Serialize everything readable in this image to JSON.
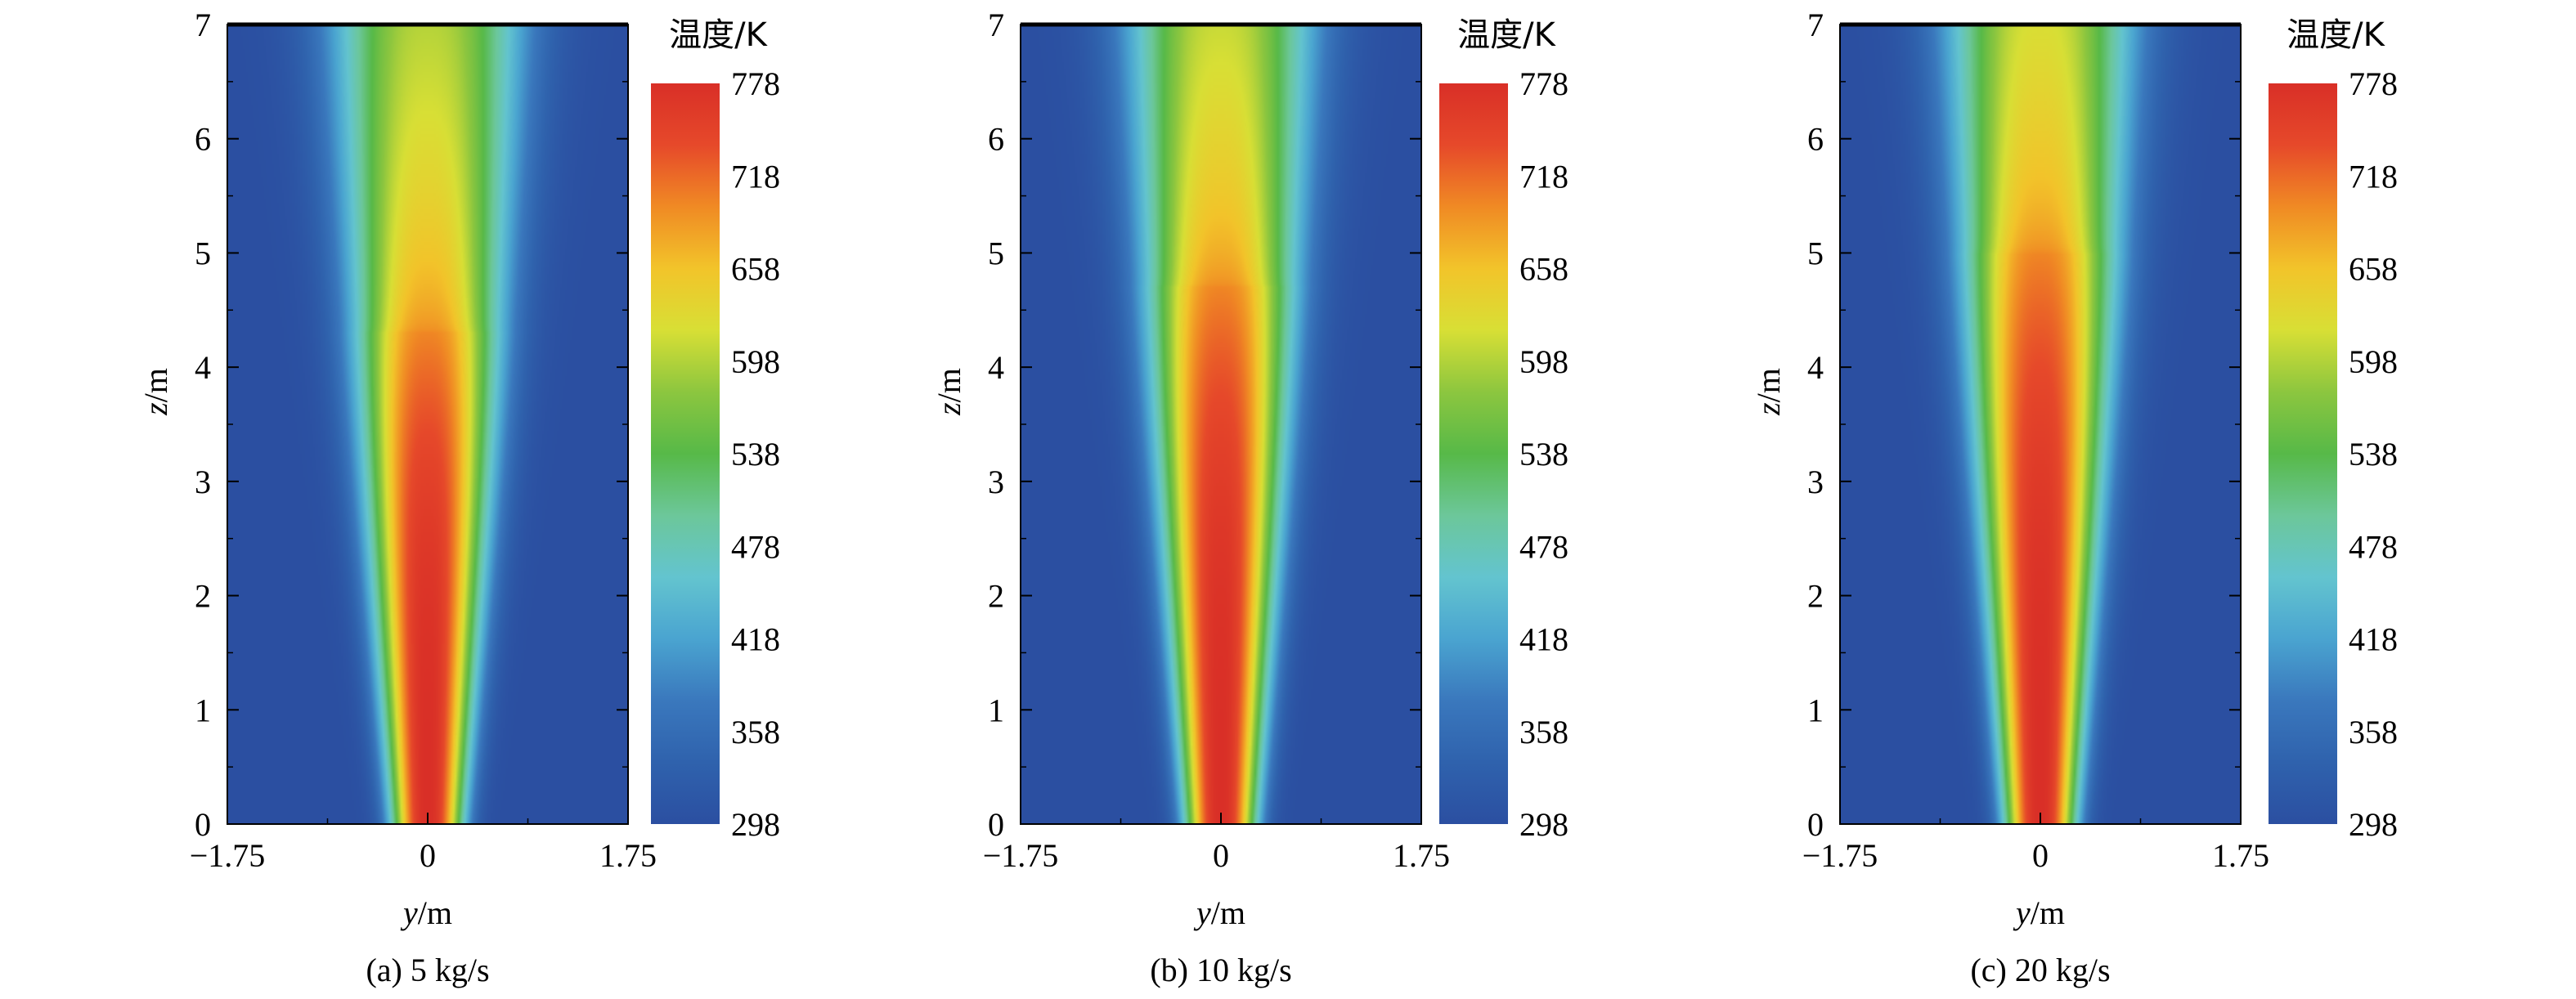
{
  "chart_data": [
    {
      "type": "heatmap",
      "caption": "(a) 5 kg/s",
      "xlabel_var": "y",
      "xlabel_unit": "/m",
      "ylabel_var": "z",
      "ylabel_unit": "/m",
      "xlim": [
        -1.75,
        1.75
      ],
      "ylim": [
        0,
        7
      ],
      "x_ticks": [
        "−1.75",
        "0",
        "1.75"
      ],
      "y_ticks": [
        "0",
        "1",
        "2",
        "3",
        "4",
        "5",
        "6",
        "7"
      ],
      "colorbar_title": "温度/K",
      "colorbar_ticks": [
        "778",
        "718",
        "658",
        "598",
        "538",
        "478",
        "418",
        "358",
        "298"
      ],
      "value_range": [
        298,
        778
      ],
      "plume_model": {
        "t_ambient": 298,
        "core_max": 778,
        "hot_core_top_z": 4.3,
        "half_width_at_base_m": 0.34,
        "half_width_at_top_m": 0.92,
        "t_at_top_centre": 600
      }
    },
    {
      "type": "heatmap",
      "caption": "(b) 10 kg/s",
      "xlabel_var": "y",
      "xlabel_unit": "/m",
      "ylabel_var": "z",
      "ylabel_unit": "/m",
      "xlim": [
        -1.75,
        1.75
      ],
      "ylim": [
        0,
        7
      ],
      "x_ticks": [
        "−1.75",
        "0",
        "1.75"
      ],
      "y_ticks": [
        "0",
        "1",
        "2",
        "3",
        "4",
        "5",
        "6",
        "7"
      ],
      "colorbar_title": "温度/K",
      "colorbar_ticks": [
        "778",
        "718",
        "658",
        "598",
        "538",
        "478",
        "418",
        "358",
        "298"
      ],
      "value_range": [
        298,
        778
      ],
      "plume_model": {
        "t_ambient": 298,
        "core_max": 778,
        "hot_core_top_z": 4.7,
        "half_width_at_base_m": 0.34,
        "half_width_at_top_m": 0.9,
        "t_at_top_centre": 610
      }
    },
    {
      "type": "heatmap",
      "caption": "(c) 20 kg/s",
      "xlabel_var": "y",
      "xlabel_unit": "/m",
      "ylabel_var": "z",
      "ylabel_unit": "/m",
      "xlim": [
        -1.75,
        1.75
      ],
      "ylim": [
        0,
        7
      ],
      "x_ticks": [
        "−1.75",
        "0",
        "1.75"
      ],
      "y_ticks": [
        "0",
        "1",
        "2",
        "3",
        "4",
        "5",
        "6",
        "7"
      ],
      "colorbar_title": "温度/K",
      "colorbar_ticks": [
        "778",
        "718",
        "658",
        "598",
        "538",
        "478",
        "418",
        "358",
        "298"
      ],
      "value_range": [
        298,
        778
      ],
      "plume_model": {
        "t_ambient": 298,
        "core_max": 778,
        "hot_core_top_z": 5.0,
        "half_width_at_base_m": 0.34,
        "half_width_at_top_m": 0.9,
        "t_at_top_centre": 620
      }
    }
  ],
  "colormap": [
    "#2b4fa1",
    "#2f62ad",
    "#3a78bd",
    "#4aa4d0",
    "#63c4cf",
    "#6cc79a",
    "#57b948",
    "#8cc63f",
    "#d8df35",
    "#f2c42a",
    "#f08a24",
    "#e6492a",
    "#d92f27"
  ]
}
